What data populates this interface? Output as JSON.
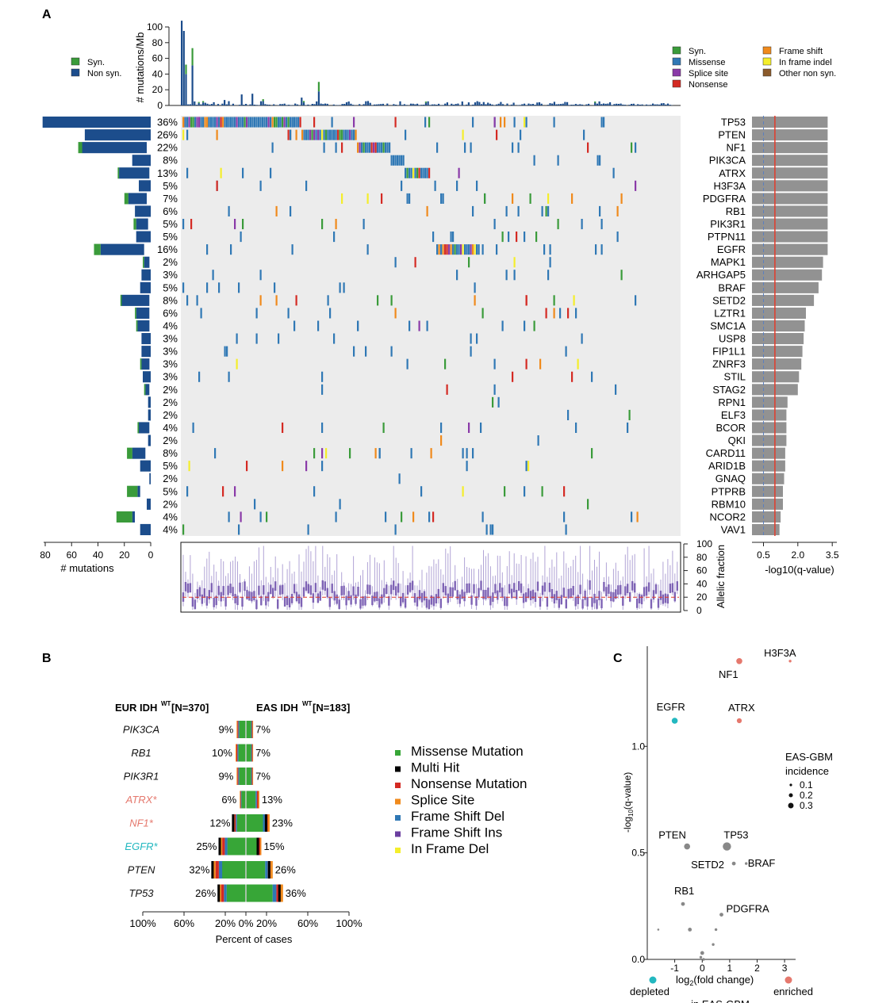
{
  "panels": {
    "a": "A",
    "b": "B",
    "c": "C"
  },
  "colors": {
    "syn": "#3a9b3a",
    "missense": "#2f78b5",
    "splice": "#8a3aa8",
    "nonsense": "#d42a23",
    "frameshift": "#f08a1c",
    "inframe": "#f4ee2b",
    "othernonsyn": "#8b5a2b",
    "navy": "#1c4d8c",
    "grid": "#ececec",
    "violet": "#7e63b5",
    "redline": "#e23b2b",
    "teal": "#23b8c0",
    "salmon": "#e5786d",
    "grey": "#888888",
    "bgreen": "#37a637",
    "bblack": "#000000",
    "bred": "#d42a23",
    "borange": "#f08a1c",
    "bblue": "#2f78b5",
    "bpurple": "#6b3fa0",
    "byellow": "#f4ee2b"
  },
  "chart_data": [
    {
      "name": "mutation_landscape",
      "type": "heatmap",
      "top_axis_label": "# mutations/Mb",
      "top_ticks": [
        0,
        20,
        40,
        60,
        80,
        100
      ],
      "top_legend": [
        "Syn.",
        "Non syn."
      ],
      "type_legend": [
        "Syn.",
        "Missense",
        "Splice site",
        "Nonsense",
        "Frame shift",
        "In frame indel",
        "Other non syn."
      ],
      "genes": [
        "TP53",
        "PTEN",
        "NF1",
        "PIK3CA",
        "ATRX",
        "H3F3A",
        "PDGFRA",
        "RB1",
        "PIK3R1",
        "PTPN11",
        "EGFR",
        "MAPK1",
        "ARHGAP5",
        "BRAF",
        "SETD2",
        "LZTR1",
        "SMC1A",
        "USP8",
        "FIP1L1",
        "ZNRF3",
        "STIL",
        "STAG2",
        "RPN1",
        "ELF3",
        "BCOR",
        "QKI",
        "CARD11",
        "ARID1B",
        "GNAQ",
        "PTPRB",
        "RBM10",
        "NCOR2",
        "VAV1"
      ],
      "percent": [
        "36%",
        "26%",
        "22%",
        "8%",
        "13%",
        "5%",
        "7%",
        "6%",
        "5%",
        "5%",
        "16%",
        "2%",
        "3%",
        "5%",
        "8%",
        "6%",
        "4%",
        "3%",
        "3%",
        "3%",
        "3%",
        "2%",
        "2%",
        "2%",
        "4%",
        "2%",
        "8%",
        "5%",
        "2%",
        "5%",
        "2%",
        "4%",
        "4%"
      ],
      "left_counts": [
        82,
        50,
        52,
        14,
        24,
        9,
        17,
        12,
        11,
        11,
        38,
        5,
        7,
        8,
        22,
        11,
        10,
        7,
        7,
        7,
        6,
        4,
        2,
        2,
        9,
        2,
        14,
        8,
        1,
        10,
        3,
        14,
        8
      ],
      "left_counts_syn": [
        0,
        0,
        3,
        0,
        1,
        0,
        3,
        0,
        2,
        0,
        5,
        1,
        0,
        0,
        1,
        1,
        1,
        0,
        0,
        1,
        0,
        1,
        0,
        0,
        1,
        0,
        4,
        0,
        0,
        8,
        0,
        12,
        0
      ],
      "left_axis_label": "# mutations",
      "left_ticks": [
        80,
        60,
        40,
        20,
        0
      ],
      "q_values": [
        3.3,
        3.3,
        3.3,
        3.3,
        3.3,
        3.3,
        3.3,
        3.3,
        3.3,
        3.3,
        3.3,
        3.1,
        3.05,
        2.9,
        2.7,
        2.35,
        2.3,
        2.25,
        2.2,
        2.15,
        2.05,
        2.0,
        1.55,
        1.5,
        1.5,
        1.5,
        1.45,
        1.45,
        1.4,
        1.35,
        1.35,
        1.25,
        1.2
      ],
      "q_axis_label": "-log10(q-value)",
      "q_ticks": [
        "0.5",
        "2.0",
        "3.5"
      ],
      "q_threshold": 1.0,
      "af_axis_label": "Allelic fraction",
      "af_ticks": [
        0,
        20,
        40,
        60,
        80,
        100
      ],
      "af_median": 20
    },
    {
      "name": "eur_vs_eas",
      "type": "bar",
      "left_title": "EUR IDH",
      "left_sup": "WT",
      "left_n": "[N=370]",
      "right_title": "EAS IDH",
      "right_sup": "WT",
      "right_n": "[N=183]",
      "genes": [
        "PIK3CA",
        "RB1",
        "PIK3R1",
        "ATRX*",
        "NF1*",
        "EGFR*",
        "PTEN",
        "TP53"
      ],
      "eur_percent": [
        9,
        10,
        9,
        6,
        12,
        25,
        32,
        26
      ],
      "eas_percent": [
        7,
        7,
        7,
        13,
        23,
        15,
        26,
        36
      ],
      "eur_labels": [
        "9%",
        "10%",
        "9%",
        "6%",
        "12%",
        "25%",
        "32%",
        "26%"
      ],
      "eas_labels": [
        "7%",
        "7%",
        "7%",
        "13%",
        "23%",
        "15%",
        "26%",
        "36%"
      ],
      "legend": [
        "Missense Mutation",
        "Multi Hit",
        "Nonsense Mutation",
        "Splice Site",
        "Frame Shift Del",
        "Frame Shift Ins",
        "In Frame Del"
      ],
      "x_ticks": [
        "100%",
        "60%",
        "20%",
        "0%",
        "20%",
        "60%",
        "100%"
      ],
      "x_label": "Percent of cases"
    },
    {
      "name": "volcano",
      "type": "scatter",
      "x_label_pre": "log",
      "x_label_sub": "2",
      "x_label_post": "(fold change)",
      "y_label_pre": "-log",
      "y_label_sub": "10",
      "y_label_post": "(q-value)",
      "x_ticks": [
        "-1",
        "0",
        "1",
        "2",
        "3"
      ],
      "y_ticks": [
        "0.0",
        "0.5",
        "1.0"
      ],
      "xlim": [
        -2.0,
        3.4
      ],
      "ylim": [
        0,
        1.47
      ],
      "points": [
        {
          "label": "H3F3A",
          "x": 3.2,
          "y": 1.4,
          "size": 0.05,
          "group": "enriched"
        },
        {
          "label": "NF1",
          "x": 1.35,
          "y": 1.4,
          "size": 0.2,
          "group": "enriched"
        },
        {
          "label": "EGFR",
          "x": -1.0,
          "y": 1.12,
          "size": 0.2,
          "group": "depleted"
        },
        {
          "label": "ATRX",
          "x": 1.35,
          "y": 1.12,
          "size": 0.15,
          "group": "enriched"
        },
        {
          "label": "PTEN",
          "x": -0.55,
          "y": 0.53,
          "size": 0.2,
          "group": "ns"
        },
        {
          "label": "TP53",
          "x": 0.9,
          "y": 0.53,
          "size": 0.3,
          "group": "ns"
        },
        {
          "label": "SETD2",
          "x": 1.15,
          "y": 0.45,
          "size": 0.1,
          "group": "ns"
        },
        {
          "label": "BRAF",
          "x": 1.6,
          "y": 0.45,
          "size": 0.05,
          "group": "ns"
        },
        {
          "label": "RB1",
          "x": -0.7,
          "y": 0.26,
          "size": 0.1,
          "group": "ns"
        },
        {
          "label": "PDGFRA",
          "x": 0.7,
          "y": 0.21,
          "size": 0.1,
          "group": "ns"
        },
        {
          "label": "",
          "x": -1.6,
          "y": 0.14,
          "size": 0.02,
          "group": "ns"
        },
        {
          "label": "",
          "x": -0.45,
          "y": 0.14,
          "size": 0.1,
          "group": "ns"
        },
        {
          "label": "",
          "x": 0.5,
          "y": 0.14,
          "size": 0.05,
          "group": "ns"
        },
        {
          "label": "",
          "x": 0.4,
          "y": 0.07,
          "size": 0.05,
          "group": "ns"
        },
        {
          "label": "",
          "x": 0.0,
          "y": 0.03,
          "size": 0.1,
          "group": "ns"
        },
        {
          "label": "",
          "x": -0.05,
          "y": 0.01,
          "size": 0.05,
          "group": "ns"
        },
        {
          "label": "",
          "x": 0.05,
          "y": 0.0,
          "size": 0.05,
          "group": "ns"
        }
      ],
      "size_legend_title": [
        "EAS-GBM",
        "incidence"
      ],
      "size_legend": [
        "0.1",
        "0.2",
        "0.3"
      ],
      "bottom_left": "depleted",
      "bottom_right": "enriched",
      "bottom_center": "in EAS-GBM"
    }
  ]
}
